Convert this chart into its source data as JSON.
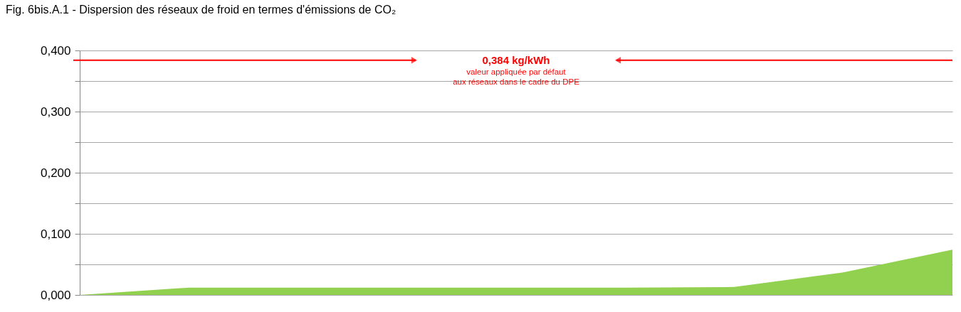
{
  "chart_data": {
    "type": "area",
    "title": "Fig. 6bis.A.1 - Dispersion des réseaux de froid en termes d'émissions de CO₂",
    "categories": [
      null,
      null,
      null,
      null,
      null,
      null,
      null,
      null,
      null
    ],
    "series": [
      {
        "color": "#92d050",
        "values": [
          0,
          0.012,
          0.012,
          0.012,
          0.012,
          0.012,
          0.013,
          0.037,
          0.074
        ]
      }
    ],
    "ylim": [
      0,
      0.4
    ],
    "yticks": [
      {
        "value": 0,
        "label": "0,000"
      },
      {
        "value": 0.05,
        "label": null
      },
      {
        "value": 0.1,
        "label": "0,100"
      },
      {
        "value": 0.15,
        "label": null
      },
      {
        "value": 0.2,
        "label": "0,200"
      },
      {
        "value": 0.25,
        "label": null
      },
      {
        "value": 0.3,
        "label": "0,300"
      },
      {
        "value": 0.35,
        "label": null
      },
      {
        "value": 0.4,
        "label": "0,400"
      }
    ],
    "grid": true,
    "ref_lines": [
      {
        "axis": "y",
        "value": 0.384,
        "label": "0,384 kg/kWh",
        "color": "#ff0000"
      }
    ],
    "annotations": [
      "valeur appliquée par défaut",
      "aux réseaux dans le cadre du DPE"
    ]
  }
}
